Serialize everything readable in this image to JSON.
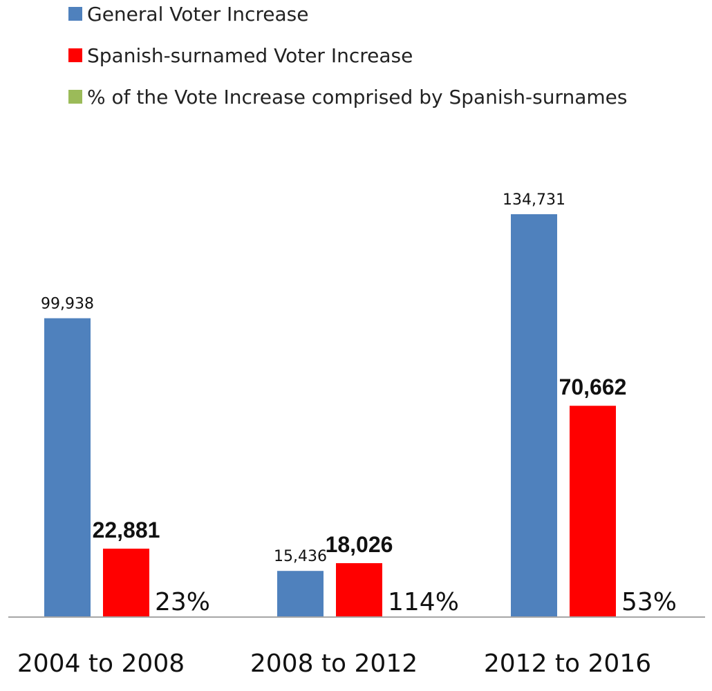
{
  "chart_data": {
    "type": "bar",
    "categories": [
      "2004 to 2008",
      "2008 to 2012",
      "2012 to 2016"
    ],
    "series": [
      {
        "name": "General Voter Increase",
        "color": "#4F81BD",
        "values": [
          99938,
          15436,
          134731
        ],
        "labels": [
          "99,938",
          "15,436",
          "134,731"
        ]
      },
      {
        "name": "Spanish-surnamed Voter Increase",
        "color": "#FF0000",
        "values": [
          22881,
          18026,
          70662
        ],
        "labels": [
          "22,881",
          "18,026",
          "70,662"
        ]
      },
      {
        "name": "% of the Vote Increase comprised by Spanish-surnames",
        "color": "#9BBB59",
        "values": [
          23,
          114,
          53
        ],
        "labels": [
          "23%",
          "114%",
          "53%"
        ]
      }
    ],
    "ylim": [
      0,
      150000
    ],
    "grid": false,
    "legend_position": "top-left"
  }
}
